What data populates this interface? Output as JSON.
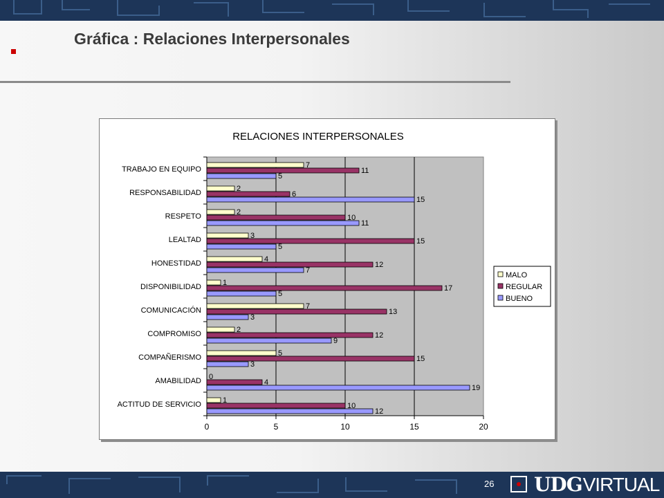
{
  "slide": {
    "title": "Gráfica : Relaciones Interpersonales",
    "page_number": "26",
    "logo": {
      "bold": "UDG",
      "light": "VIRTUAL"
    },
    "colors": {
      "bullet": "#cc0000",
      "background": "#1d3558"
    }
  },
  "chart_data": {
    "type": "bar",
    "orientation": "horizontal",
    "title": "RELACIONES INTERPERSONALES",
    "categories": [
      "TRABAJO EN EQUIPO",
      "RESPONSABILIDAD",
      "RESPETO",
      "LEALTAD",
      "HONESTIDAD",
      "DISPONIBILIDAD",
      "COMUNICACIÓN",
      "COMPROMISO",
      "COMPAÑERISMO",
      "AMABILIDAD",
      "ACTITUD DE SERVICIO"
    ],
    "series": [
      {
        "name": "MALO",
        "color": "#ffffcc",
        "values": [
          7,
          2,
          2,
          3,
          4,
          1,
          7,
          2,
          5,
          0,
          1
        ]
      },
      {
        "name": "REGULAR",
        "color": "#993366",
        "values": [
          11,
          6,
          10,
          15,
          12,
          17,
          13,
          12,
          15,
          4,
          10
        ]
      },
      {
        "name": "BUENO",
        "color": "#9999ff",
        "values": [
          5,
          15,
          11,
          5,
          7,
          5,
          3,
          9,
          3,
          19,
          12
        ]
      }
    ],
    "xlim": [
      0,
      20
    ],
    "x_ticks": [
      "0",
      "5",
      "10",
      "15",
      "20"
    ],
    "plot_background": "#c0c0c0",
    "grid": true,
    "legend_position": "right"
  }
}
